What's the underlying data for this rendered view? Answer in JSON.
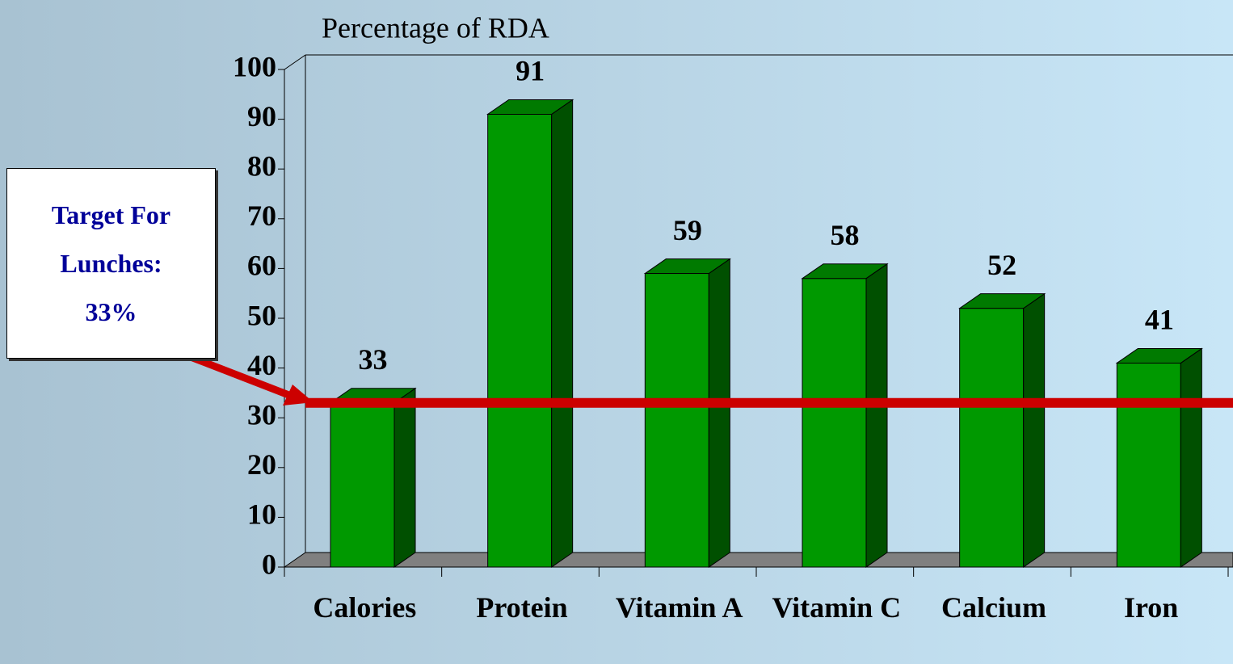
{
  "chart_data": {
    "type": "bar3d",
    "title": "Percentage of RDA",
    "categories": [
      "Calories",
      "Protein",
      "Vitamin A",
      "Vitamin C",
      "Calcium",
      "Iron"
    ],
    "values": [
      33,
      91,
      59,
      58,
      52,
      41
    ],
    "color": "#009900",
    "ylim": [
      0,
      100
    ],
    "yticks": [
      0,
      10,
      20,
      30,
      40,
      50,
      60,
      70,
      80,
      90,
      100
    ],
    "target": 33,
    "target_label": "Target For Lunches: 33%",
    "target_color": "#cc0000"
  }
}
